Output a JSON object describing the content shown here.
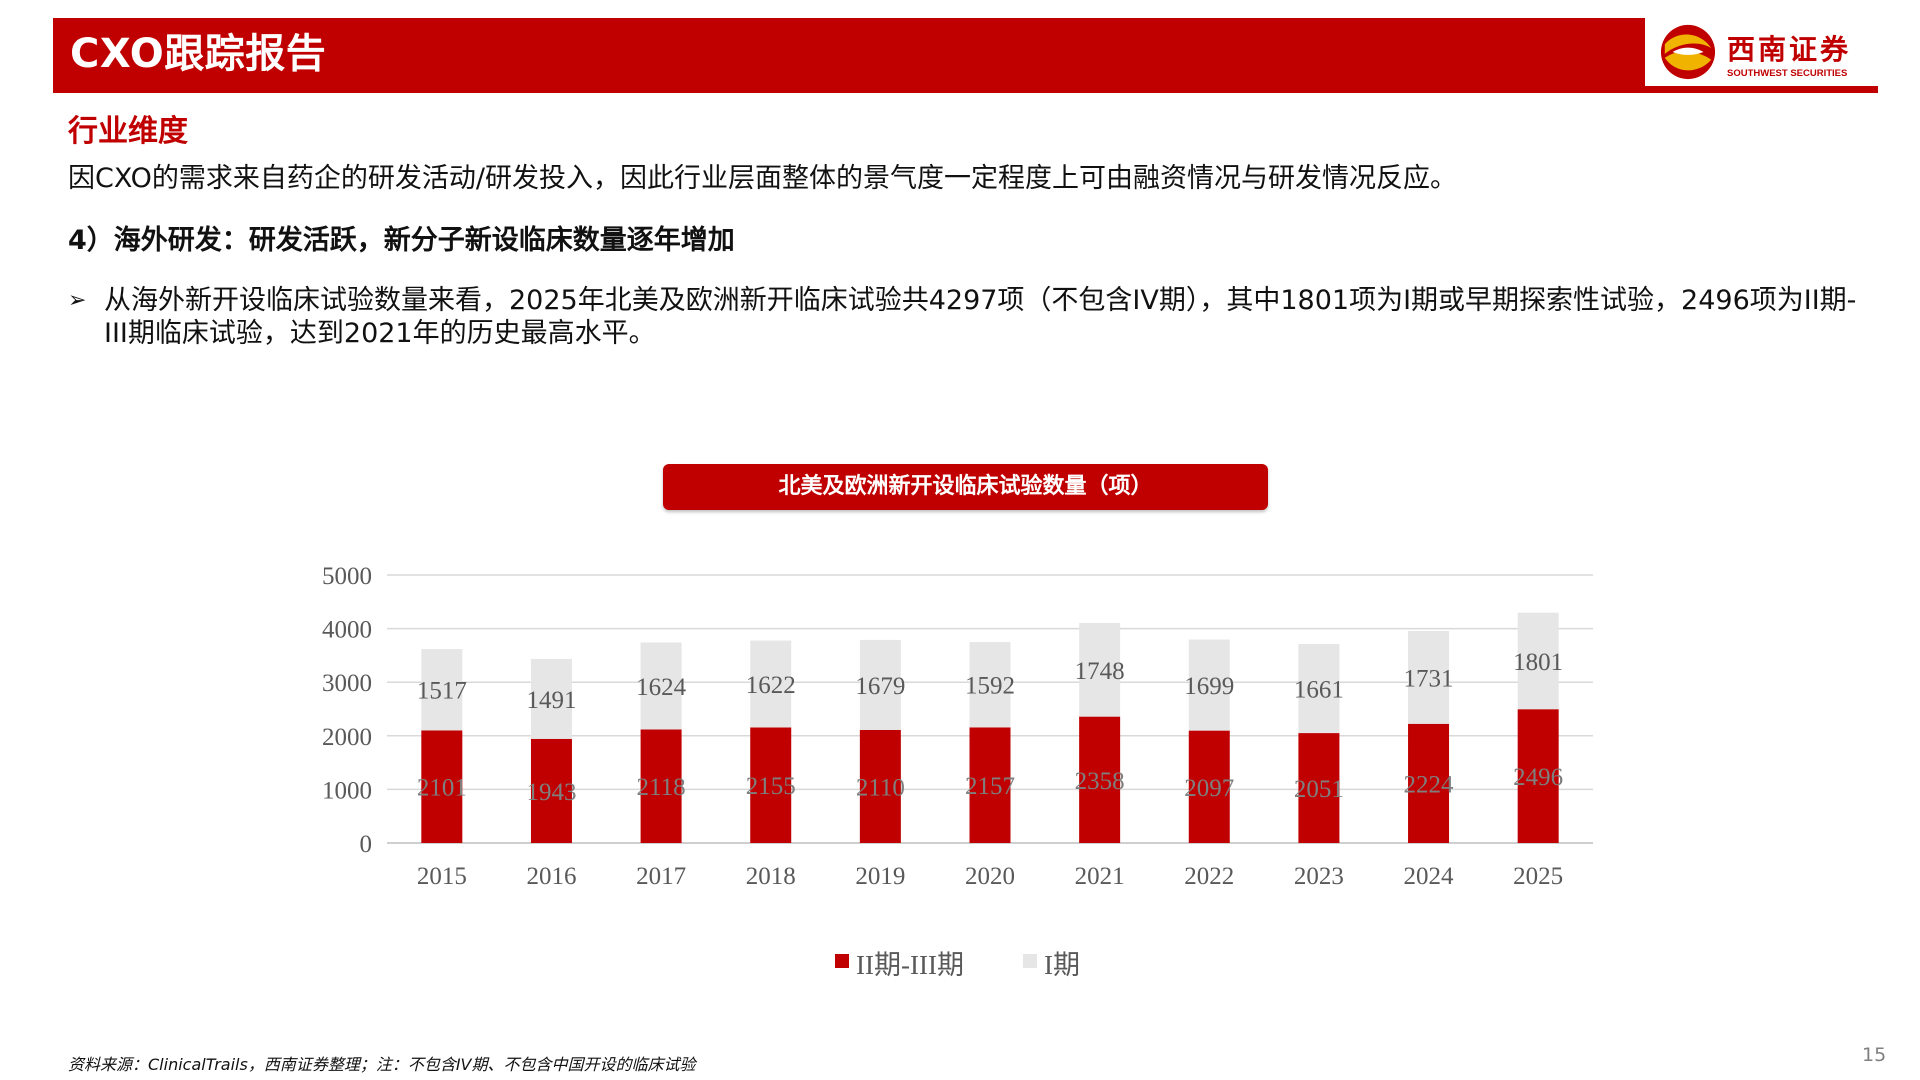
{
  "header": {
    "title": "CXO跟踪报告",
    "logo_cn": "西南证券",
    "logo_en": "SOUTHWEST SECURITIES"
  },
  "section_title": "行业维度",
  "intro": "因CXO的需求来自药企的研发活动/研发投入，因此行业层面整体的景气度一定程度上可由融资情况与研发情况反应。",
  "subheading": "4）海外研发：研发活跃，新分子新设临床数量逐年增加",
  "bullet": {
    "icon": "arrow-bullet-icon",
    "text": "从海外新开设临床试验数量来看，2025年北美及欧洲新开临床试验共4297项（不包含IV期），其中1801项为I期或早期探索性试验，2496项为II期-III期临床试验，达到2021年的历史最高水平。"
  },
  "chart_title": "北美及欧洲新开设临床试验数量（项）",
  "chart_data": {
    "type": "bar",
    "stacked": true,
    "categories": [
      "2015",
      "2016",
      "2017",
      "2018",
      "2019",
      "2020",
      "2021",
      "2022",
      "2023",
      "2024",
      "2025"
    ],
    "series": [
      {
        "name": "II期-III期",
        "color": "#c00000",
        "values": [
          2101,
          1943,
          2118,
          2155,
          2110,
          2157,
          2358,
          2097,
          2051,
          2224,
          2496
        ]
      },
      {
        "name": "I期",
        "color": "#e6e6e6",
        "values": [
          1517,
          1491,
          1624,
          1622,
          1679,
          1592,
          1748,
          1699,
          1661,
          1731,
          1801
        ]
      }
    ],
    "ylim": [
      0,
      5000
    ],
    "yticks": [
      "0",
      "1000",
      "2000",
      "3000",
      "4000",
      "5000"
    ],
    "grid": true,
    "data_labels": true,
    "legend_position": "bottom",
    "title": "",
    "xlabel": "",
    "ylabel": ""
  },
  "footer": {
    "source": "资料来源：ClinicalTrails，西南证券整理；注：不包含IV期、不包含中国开设的临床试验",
    "page_number": "15"
  }
}
